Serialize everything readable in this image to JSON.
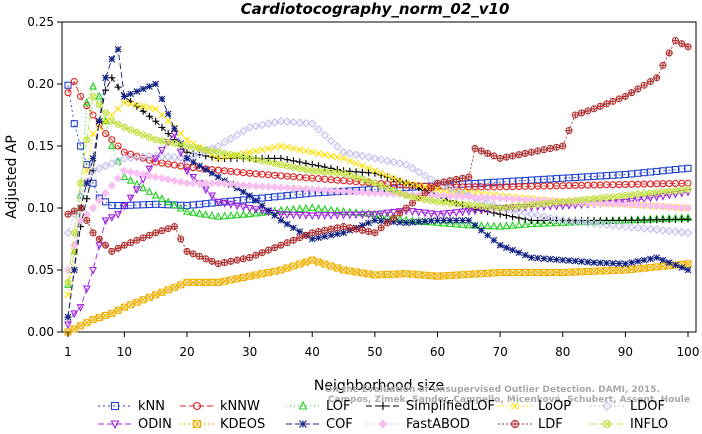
{
  "chart_data": {
    "type": "line",
    "title": "Cardiotocography_norm_02_v10",
    "xlabel": "Neighborhood size",
    "ylabel": "Adjusted AP",
    "xlim": [
      1,
      100
    ],
    "ylim": [
      0,
      0.25
    ],
    "xticks": [
      "1",
      "10",
      "20",
      "30",
      "40",
      "50",
      "60",
      "70",
      "80",
      "90",
      "100"
    ],
    "yticks": [
      "0.00",
      "0.05",
      "0.10",
      "0.15",
      "0.20",
      "0.25"
    ],
    "grid": false,
    "legend_position": "bottom",
    "watermark_lines": [
      "Campos, Zimek, Sander, Campello, Micenková, Schubert, Assent, Houle",
      "On the Evaluation of Unsupervised Outlier Detection. DAMI, 2015."
    ],
    "series": [
      {
        "name": "kNN",
        "color": "#2040d0",
        "marker": "square",
        "dash": "2,3",
        "points": [
          [
            1,
            0.199
          ],
          [
            2,
            0.168
          ],
          [
            3,
            0.15
          ],
          [
            4,
            0.135
          ],
          [
            5,
            0.12
          ],
          [
            6,
            0.108
          ],
          [
            8,
            0.102
          ],
          [
            10,
            0.102
          ],
          [
            15,
            0.103
          ],
          [
            20,
            0.102
          ],
          [
            30,
            0.107
          ],
          [
            40,
            0.112
          ],
          [
            50,
            0.115
          ],
          [
            60,
            0.118
          ],
          [
            70,
            0.121
          ],
          [
            80,
            0.124
          ],
          [
            90,
            0.127
          ],
          [
            100,
            0.132
          ]
        ]
      },
      {
        "name": "kNNW",
        "color": "#e02020",
        "marker": "circle",
        "dash": "6,3",
        "points": [
          [
            1,
            0.193
          ],
          [
            2,
            0.202
          ],
          [
            3,
            0.19
          ],
          [
            5,
            0.175
          ],
          [
            7,
            0.16
          ],
          [
            10,
            0.145
          ],
          [
            15,
            0.137
          ],
          [
            20,
            0.133
          ],
          [
            30,
            0.128
          ],
          [
            40,
            0.124
          ],
          [
            50,
            0.12
          ],
          [
            60,
            0.117
          ],
          [
            70,
            0.117
          ],
          [
            80,
            0.118
          ],
          [
            90,
            0.119
          ],
          [
            100,
            0.12
          ]
        ]
      },
      {
        "name": "LOF",
        "color": "#20d020",
        "marker": "triangle-up",
        "dash": "1,3",
        "points": [
          [
            1,
            0.038
          ],
          [
            2,
            0.065
          ],
          [
            3,
            0.11
          ],
          [
            4,
            0.185
          ],
          [
            5,
            0.198
          ],
          [
            6,
            0.19
          ],
          [
            8,
            0.15
          ],
          [
            10,
            0.125
          ],
          [
            15,
            0.11
          ],
          [
            20,
            0.097
          ],
          [
            25,
            0.093
          ],
          [
            30,
            0.095
          ],
          [
            35,
            0.098
          ],
          [
            40,
            0.1
          ],
          [
            45,
            0.097
          ],
          [
            50,
            0.095
          ],
          [
            55,
            0.09
          ],
          [
            60,
            0.088
          ],
          [
            65,
            0.086
          ],
          [
            70,
            0.085
          ],
          [
            75,
            0.087
          ],
          [
            80,
            0.088
          ],
          [
            90,
            0.09
          ],
          [
            100,
            0.092
          ]
        ]
      },
      {
        "name": "SimplifiedLOF",
        "color": "#000000",
        "marker": "plus",
        "dash": "6,3",
        "points": [
          [
            1,
            0.012
          ],
          [
            2,
            0.05
          ],
          [
            3,
            0.085
          ],
          [
            5,
            0.13
          ],
          [
            6,
            0.17
          ],
          [
            7,
            0.195
          ],
          [
            8,
            0.205
          ],
          [
            10,
            0.19
          ],
          [
            15,
            0.17
          ],
          [
            20,
            0.145
          ],
          [
            25,
            0.14
          ],
          [
            30,
            0.14
          ],
          [
            35,
            0.14
          ],
          [
            40,
            0.135
          ],
          [
            45,
            0.13
          ],
          [
            50,
            0.128
          ],
          [
            55,
            0.12
          ],
          [
            60,
            0.11
          ],
          [
            65,
            0.1
          ],
          [
            70,
            0.095
          ],
          [
            75,
            0.09
          ],
          [
            80,
            0.09
          ],
          [
            90,
            0.09
          ],
          [
            100,
            0.091
          ]
        ]
      },
      {
        "name": "LoOP",
        "color": "#ffe000",
        "marker": "x",
        "dash": "2,2",
        "points": [
          [
            1,
            0.03
          ],
          [
            3,
            0.1
          ],
          [
            5,
            0.16
          ],
          [
            8,
            0.175
          ],
          [
            10,
            0.185
          ],
          [
            15,
            0.18
          ],
          [
            20,
            0.155
          ],
          [
            25,
            0.14
          ],
          [
            30,
            0.145
          ],
          [
            35,
            0.15
          ],
          [
            40,
            0.145
          ],
          [
            45,
            0.14
          ],
          [
            50,
            0.13
          ],
          [
            55,
            0.12
          ],
          [
            60,
            0.115
          ],
          [
            70,
            0.11
          ],
          [
            80,
            0.105
          ],
          [
            90,
            0.103
          ],
          [
            100,
            0.1
          ]
        ]
      },
      {
        "name": "LDOF",
        "color": "#c0c0f0",
        "marker": "diamond",
        "dash": "2,2",
        "points": [
          [
            1,
            0.08
          ],
          [
            3,
            0.11
          ],
          [
            5,
            0.13
          ],
          [
            10,
            0.14
          ],
          [
            15,
            0.142
          ],
          [
            20,
            0.14
          ],
          [
            25,
            0.15
          ],
          [
            30,
            0.165
          ],
          [
            35,
            0.17
          ],
          [
            40,
            0.168
          ],
          [
            45,
            0.145
          ],
          [
            50,
            0.14
          ],
          [
            55,
            0.135
          ],
          [
            60,
            0.12
          ],
          [
            70,
            0.1
          ],
          [
            80,
            0.09
          ],
          [
            90,
            0.085
          ],
          [
            100,
            0.08
          ]
        ]
      },
      {
        "name": "ODIN",
        "color": "#a020e0",
        "marker": "triangle-down",
        "dash": "6,3",
        "points": [
          [
            1,
            0.006
          ],
          [
            2,
            0.015
          ],
          [
            3,
            0.02
          ],
          [
            5,
            0.05
          ],
          [
            7,
            0.09
          ],
          [
            9,
            0.095
          ],
          [
            12,
            0.115
          ],
          [
            15,
            0.14
          ],
          [
            18,
            0.16
          ],
          [
            20,
            0.13
          ],
          [
            25,
            0.105
          ],
          [
            30,
            0.1
          ],
          [
            35,
            0.095
          ],
          [
            40,
            0.094
          ],
          [
            50,
            0.095
          ],
          [
            55,
            0.098
          ],
          [
            60,
            0.095
          ],
          [
            70,
            0.1
          ],
          [
            80,
            0.102
          ],
          [
            90,
            0.105
          ],
          [
            100,
            0.113
          ]
        ]
      },
      {
        "name": "KDEOS",
        "color": "#f0b000",
        "marker": "square-x",
        "dash": "2,2",
        "points": [
          [
            1,
            0.0
          ],
          [
            3,
            0.005
          ],
          [
            5,
            0.01
          ],
          [
            8,
            0.015
          ],
          [
            10,
            0.02
          ],
          [
            15,
            0.03
          ],
          [
            20,
            0.04
          ],
          [
            25,
            0.04
          ],
          [
            30,
            0.045
          ],
          [
            35,
            0.05
          ],
          [
            40,
            0.058
          ],
          [
            45,
            0.05
          ],
          [
            50,
            0.046
          ],
          [
            55,
            0.047
          ],
          [
            60,
            0.045
          ],
          [
            70,
            0.048
          ],
          [
            80,
            0.048
          ],
          [
            90,
            0.05
          ],
          [
            100,
            0.055
          ]
        ]
      },
      {
        "name": "COF",
        "color": "#102080",
        "marker": "asterisk",
        "dash": "6,3",
        "points": [
          [
            1,
            0.012
          ],
          [
            2,
            0.05
          ],
          [
            3,
            0.1
          ],
          [
            5,
            0.14
          ],
          [
            6,
            0.17
          ],
          [
            7,
            0.205
          ],
          [
            8,
            0.22
          ],
          [
            9,
            0.228
          ],
          [
            10,
            0.19
          ],
          [
            15,
            0.2
          ],
          [
            20,
            0.14
          ],
          [
            25,
            0.125
          ],
          [
            30,
            0.11
          ],
          [
            35,
            0.09
          ],
          [
            40,
            0.075
          ],
          [
            45,
            0.08
          ],
          [
            50,
            0.09
          ],
          [
            55,
            0.088
          ],
          [
            60,
            0.09
          ],
          [
            65,
            0.09
          ],
          [
            70,
            0.07
          ],
          [
            75,
            0.06
          ],
          [
            80,
            0.058
          ],
          [
            85,
            0.056
          ],
          [
            90,
            0.055
          ],
          [
            95,
            0.06
          ],
          [
            100,
            0.05
          ]
        ]
      },
      {
        "name": "FastABOD",
        "color": "#f8c0f0",
        "marker": "diamond-filled",
        "dash": "2,2",
        "points": [
          [
            1,
            0.05
          ],
          [
            3,
            0.09
          ],
          [
            5,
            0.1
          ],
          [
            10,
            0.13
          ],
          [
            15,
            0.125
          ],
          [
            20,
            0.12
          ],
          [
            25,
            0.12
          ],
          [
            30,
            0.118
          ],
          [
            40,
            0.115
          ],
          [
            50,
            0.112
          ],
          [
            60,
            0.11
          ],
          [
            70,
            0.108
          ],
          [
            80,
            0.105
          ],
          [
            90,
            0.103
          ],
          [
            100,
            0.1
          ]
        ]
      },
      {
        "name": "LDF",
        "color": "#b03030",
        "marker": "circle-plus",
        "dash": "2,2",
        "points": [
          [
            1,
            0.095
          ],
          [
            3,
            0.1
          ],
          [
            5,
            0.08
          ],
          [
            8,
            0.065
          ],
          [
            10,
            0.07
          ],
          [
            15,
            0.08
          ],
          [
            18,
            0.085
          ],
          [
            20,
            0.065
          ],
          [
            25,
            0.055
          ],
          [
            30,
            0.06
          ],
          [
            35,
            0.07
          ],
          [
            40,
            0.08
          ],
          [
            45,
            0.085
          ],
          [
            50,
            0.08
          ],
          [
            55,
            0.1
          ],
          [
            60,
            0.12
          ],
          [
            65,
            0.125
          ],
          [
            66,
            0.148
          ],
          [
            70,
            0.14
          ],
          [
            75,
            0.145
          ],
          [
            80,
            0.15
          ],
          [
            82,
            0.175
          ],
          [
            85,
            0.18
          ],
          [
            90,
            0.19
          ],
          [
            95,
            0.205
          ],
          [
            98,
            0.235
          ],
          [
            100,
            0.23
          ]
        ]
      },
      {
        "name": "INFLO",
        "color": "#c0e040",
        "marker": "circle-x",
        "dash": "6,3",
        "points": [
          [
            1,
            0.04
          ],
          [
            3,
            0.12
          ],
          [
            5,
            0.19
          ],
          [
            8,
            0.17
          ],
          [
            10,
            0.165
          ],
          [
            15,
            0.155
          ],
          [
            20,
            0.15
          ],
          [
            25,
            0.145
          ],
          [
            30,
            0.14
          ],
          [
            35,
            0.135
          ],
          [
            40,
            0.13
          ],
          [
            45,
            0.128
          ],
          [
            50,
            0.12
          ],
          [
            55,
            0.11
          ],
          [
            60,
            0.105
          ],
          [
            70,
            0.1
          ],
          [
            80,
            0.105
          ],
          [
            90,
            0.11
          ],
          [
            100,
            0.115
          ]
        ]
      }
    ]
  }
}
